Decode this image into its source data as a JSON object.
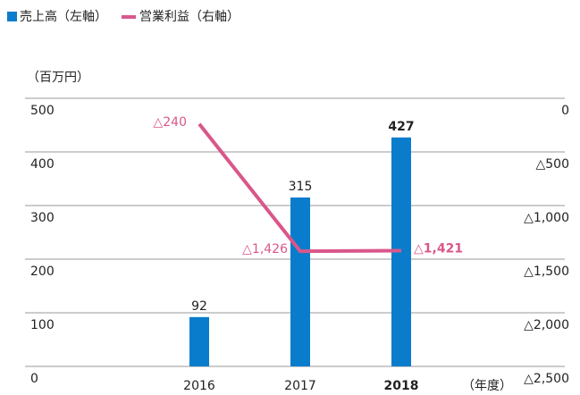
{
  "chart_data": {
    "type": "bar_line",
    "unit_label": "（百万円）",
    "x_label": "（年度）",
    "categories": [
      "2016",
      "2017",
      "2018"
    ],
    "series": [
      {
        "name": "売上高（左軸）",
        "type": "bar",
        "color": "#0a7ccc",
        "values": [
          92,
          315,
          427
        ]
      },
      {
        "name": "営業利益（右軸）",
        "type": "line",
        "axis": "y2",
        "color": "#d9578a",
        "values": [
          -240,
          -1426,
          -1421
        ],
        "value_labels": [
          "△240",
          "△1,426",
          "△1,421"
        ]
      }
    ],
    "ylim": [
      0,
      500
    ],
    "yticks": [
      0,
      100,
      200,
      300,
      400,
      500
    ],
    "y2lim": [
      -2500,
      0
    ],
    "y2ticks": [
      {
        "value": -2500,
        "label": "△2,500"
      },
      {
        "value": -2000,
        "label": "△2,000"
      },
      {
        "value": -1500,
        "label": "△1,500"
      },
      {
        "value": -1000,
        "label": "△1,000"
      },
      {
        "value": -500,
        "label": "△500"
      },
      0
    ],
    "grid": true
  }
}
